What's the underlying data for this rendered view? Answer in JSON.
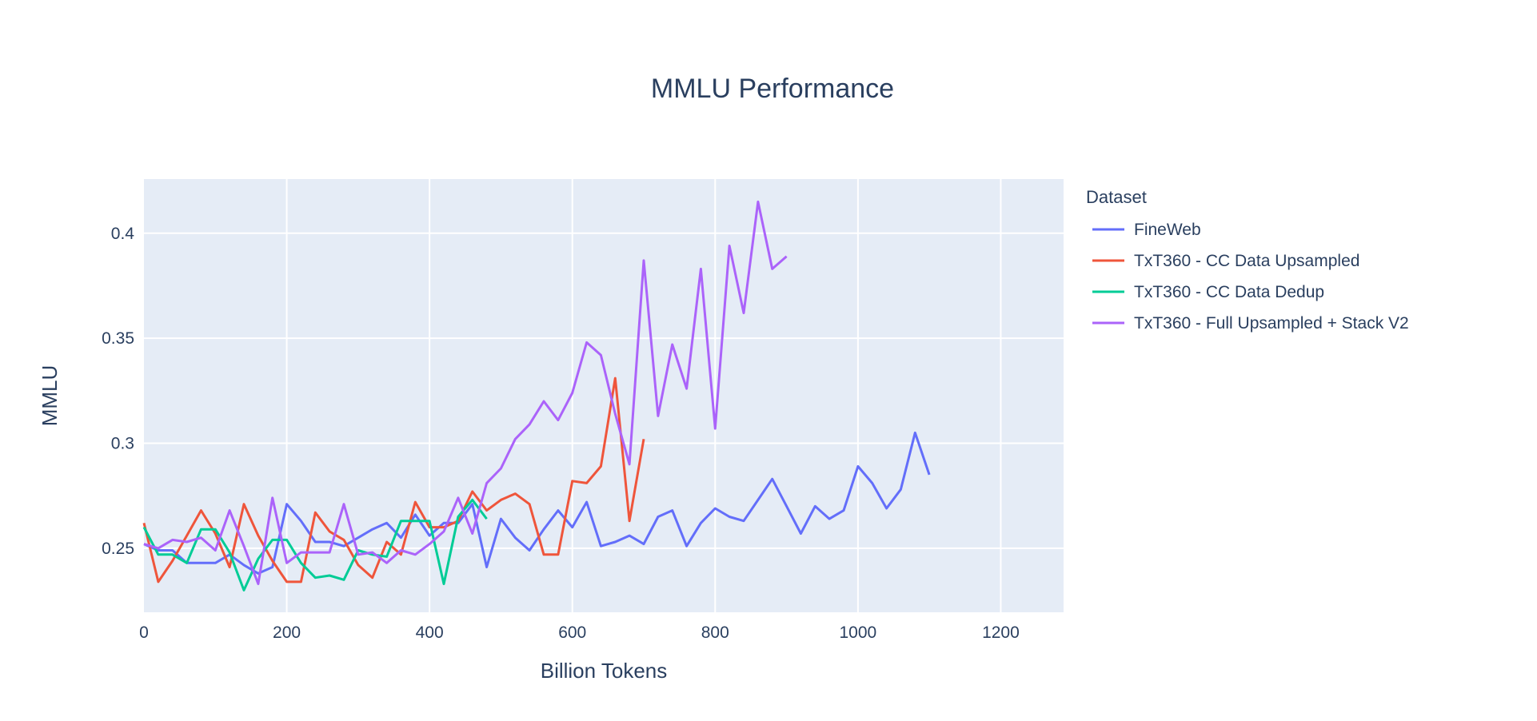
{
  "chart_data": {
    "type": "line",
    "title": "MMLU Performance",
    "xlabel": "Billion Tokens",
    "ylabel": "MMLU",
    "xlim": [
      0,
      1288
    ],
    "ylim": [
      0.2195,
      0.4258
    ],
    "xticks": [
      0,
      200,
      400,
      600,
      800,
      1000,
      1200
    ],
    "xtick_labels": [
      "0",
      "200",
      "400",
      "600",
      "800",
      "1000",
      "1200"
    ],
    "yticks": [
      0.25,
      0.3,
      0.35,
      0.4
    ],
    "ytick_labels": [
      "0.25",
      "0.3",
      "0.35",
      "0.4"
    ],
    "grid": true,
    "legend_title": "Dataset",
    "legend_position": "right",
    "x_step": 20,
    "series": [
      {
        "name": "FineWeb",
        "color": "#636efa",
        "values": [
          0.252,
          0.249,
          0.249,
          0.243,
          0.243,
          0.243,
          0.247,
          0.242,
          0.238,
          0.241,
          0.271,
          0.263,
          0.253,
          0.253,
          0.251,
          0.255,
          0.259,
          0.262,
          0.255,
          0.266,
          0.256,
          0.262,
          0.262,
          0.271,
          0.241,
          0.264,
          0.255,
          0.249,
          0.259,
          0.268,
          0.26,
          0.272,
          0.251,
          0.253,
          0.256,
          0.252,
          0.265,
          0.268,
          0.251,
          0.262,
          0.269,
          0.265,
          0.263,
          0.273,
          0.283,
          0.27,
          0.257,
          0.27,
          0.264,
          0.268,
          0.289,
          0.281,
          0.269,
          0.278,
          0.305,
          0.285
        ]
      },
      {
        "name": "TxT360 - CC Data Upsampled",
        "color": "#ef553b",
        "values": [
          0.262,
          0.234,
          0.244,
          0.256,
          0.268,
          0.257,
          0.241,
          0.271,
          0.256,
          0.244,
          0.234,
          0.234,
          0.267,
          0.258,
          0.254,
          0.242,
          0.236,
          0.253,
          0.247,
          0.272,
          0.26,
          0.26,
          0.263,
          0.277,
          0.268,
          0.273,
          0.276,
          0.271,
          0.247,
          0.247,
          0.282,
          0.281,
          0.289,
          0.331,
          0.263,
          0.302
        ]
      },
      {
        "name": "TxT360 - CC Data Dedup",
        "color": "#00cc96",
        "values": [
          0.26,
          0.247,
          0.247,
          0.243,
          0.259,
          0.259,
          0.248,
          0.23,
          0.245,
          0.254,
          0.254,
          0.243,
          0.236,
          0.237,
          0.235,
          0.249,
          0.247,
          0.246,
          0.263,
          0.263,
          0.263,
          0.233,
          0.265,
          0.273,
          0.264
        ]
      },
      {
        "name": "TxT360 - Full Upsampled + Stack V2",
        "color": "#ab63fa",
        "values": [
          0.252,
          0.25,
          0.254,
          0.253,
          0.255,
          0.249,
          0.268,
          0.251,
          0.233,
          0.274,
          0.243,
          0.248,
          0.248,
          0.248,
          0.271,
          0.247,
          0.248,
          0.243,
          0.249,
          0.247,
          0.252,
          0.258,
          0.274,
          0.257,
          0.281,
          0.288,
          0.302,
          0.309,
          0.32,
          0.311,
          0.324,
          0.348,
          0.342,
          0.314,
          0.29,
          0.387,
          0.313,
          0.347,
          0.326,
          0.383,
          0.307,
          0.394,
          0.362,
          0.415,
          0.383,
          0.389
        ]
      }
    ]
  }
}
